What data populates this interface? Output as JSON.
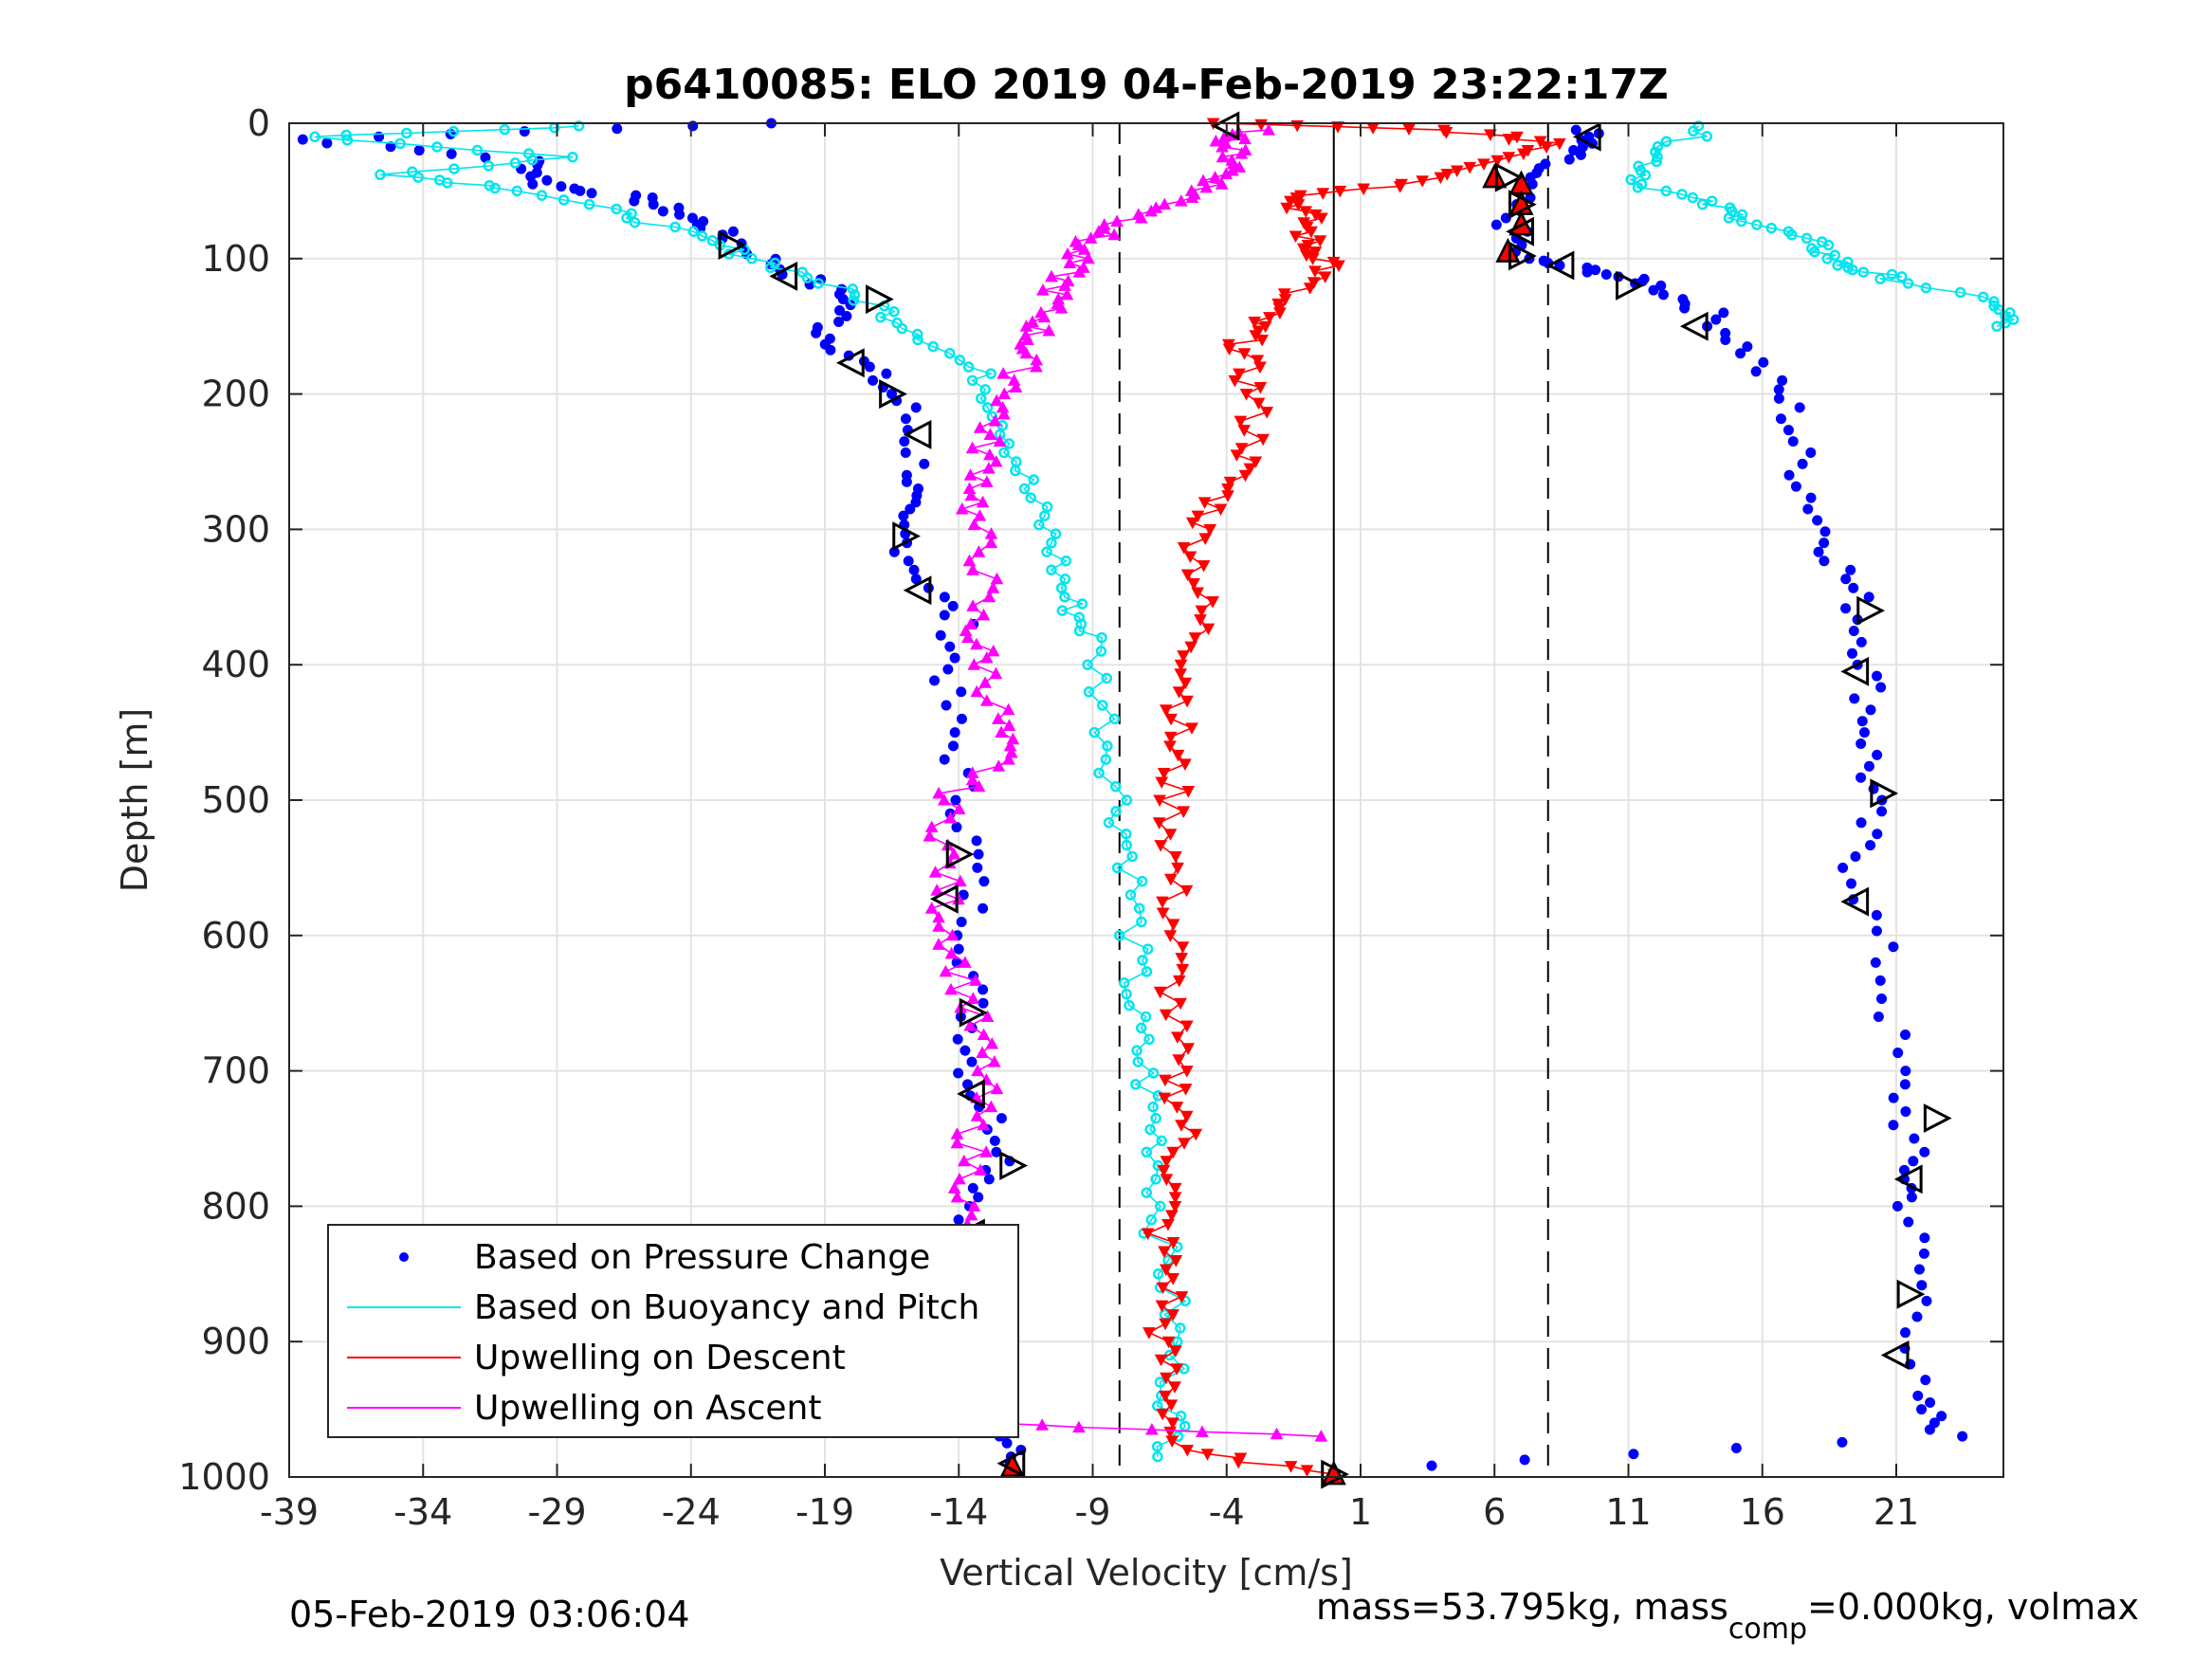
{
  "chart_data": {
    "type": "scatter",
    "title": "p6410085: ELO 2019 04-Feb-2019 23:22:17Z",
    "xlabel": "Vertical Velocity [cm/s]",
    "ylabel": "Depth [m]",
    "xlim": [
      -39,
      25
    ],
    "ylim": [
      0,
      1000
    ],
    "y_reversed": true,
    "grid": true,
    "xticks": [
      -39,
      -34,
      -29,
      -24,
      -19,
      -14,
      -9,
      -4,
      1,
      6,
      11,
      16,
      21
    ],
    "yticks": [
      0,
      100,
      200,
      300,
      400,
      500,
      600,
      700,
      800,
      900,
      1000
    ],
    "xtick_labels": [
      "-39",
      "-34",
      "-29",
      "-24",
      "-19",
      "-14",
      "-9",
      "-4",
      "1",
      "6",
      "11",
      "16",
      "21"
    ],
    "ytick_labels": [
      "0",
      "100",
      "200",
      "300",
      "400",
      "500",
      "600",
      "700",
      "800",
      "900",
      "1000"
    ],
    "vlines": [
      {
        "x": -8,
        "style": "dashed",
        "color": "#000000"
      },
      {
        "x": 8,
        "style": "dashed",
        "color": "#000000"
      },
      {
        "x": 0,
        "style": "solid",
        "color": "#000000"
      }
    ],
    "legend_position": "bottom-left",
    "series": [
      {
        "name": "Based on Pressure Change",
        "color": "#0000ff",
        "marker": "dot",
        "descent": [
          [
            -21,
            0
          ],
          [
            -38.5,
            12
          ],
          [
            -30,
            28
          ],
          [
            -29.5,
            45
          ],
          [
            -26,
            55
          ],
          [
            -24,
            70
          ],
          [
            -22.5,
            85
          ],
          [
            -20.5,
            108
          ],
          [
            -18,
            130
          ],
          [
            -19,
            155
          ],
          [
            -17.5,
            180
          ],
          [
            -16,
            210
          ],
          [
            -15.5,
            260
          ],
          [
            -16.5,
            290
          ],
          [
            -15.5,
            330
          ],
          [
            -14,
            370
          ],
          [
            -14.5,
            420
          ],
          [
            -14,
            480
          ],
          [
            -13.5,
            540
          ],
          [
            -13.5,
            600
          ],
          [
            -13.5,
            660
          ],
          [
            -13.5,
            710
          ],
          [
            -12,
            760
          ],
          [
            -13.5,
            800
          ],
          [
            -13,
            860
          ],
          [
            -12.5,
            920
          ],
          [
            -12.5,
            960
          ],
          [
            -12,
            990
          ]
        ],
        "ascent": [
          [
            9.5,
            5
          ],
          [
            9,
            20
          ],
          [
            7,
            40
          ],
          [
            6.5,
            70
          ],
          [
            7,
            100
          ],
          [
            10,
            110
          ],
          [
            12,
            120
          ],
          [
            14,
            140
          ],
          [
            15.5,
            170
          ],
          [
            17,
            210
          ],
          [
            17.5,
            260
          ],
          [
            18.5,
            310
          ],
          [
            19.5,
            350
          ],
          [
            20,
            400
          ],
          [
            20,
            450
          ],
          [
            20,
            500
          ],
          [
            19.5,
            550
          ],
          [
            20.5,
            620
          ],
          [
            21,
            700
          ],
          [
            21.5,
            760
          ],
          [
            21.5,
            800
          ],
          [
            22,
            870
          ],
          [
            21.5,
            940
          ],
          [
            23,
            970
          ],
          [
            0,
            996
          ]
        ]
      },
      {
        "name": "Based on Buoyancy and Pitch",
        "color": "#00e5ee",
        "marker": "circle",
        "descent": [
          [
            -28,
            2
          ],
          [
            -38,
            10
          ],
          [
            -28.5,
            25
          ],
          [
            -35,
            38
          ],
          [
            -30,
            50
          ],
          [
            -26,
            70
          ],
          [
            -23,
            90
          ],
          [
            -20,
            110
          ],
          [
            -17,
            135
          ],
          [
            -15,
            160
          ],
          [
            -13,
            190
          ],
          [
            -12,
            230
          ],
          [
            -11.5,
            270
          ],
          [
            -10.5,
            310
          ],
          [
            -10,
            350
          ],
          [
            -9,
            380
          ],
          [
            -8.5,
            440
          ],
          [
            -8,
            500
          ],
          [
            -7.5,
            550
          ],
          [
            -7.5,
            610
          ],
          [
            -7.5,
            660
          ],
          [
            -7,
            710
          ],
          [
            -6.5,
            760
          ],
          [
            -6.5,
            820
          ],
          [
            -6,
            880
          ],
          [
            -6,
            940
          ],
          [
            -6,
            985
          ]
        ],
        "ascent": [
          [
            14,
            2
          ],
          [
            12,
            25
          ],
          [
            11.5,
            45
          ],
          [
            14,
            60
          ],
          [
            16,
            75
          ],
          [
            18,
            90
          ],
          [
            19,
            105
          ],
          [
            21,
            115
          ],
          [
            25,
            135
          ],
          [
            25,
            150
          ]
        ]
      },
      {
        "name": "Upwelling on Descent",
        "color": "#ff0000",
        "marker": "triangle-down",
        "descent": [
          [
            -4.5,
            0
          ],
          [
            4,
            5
          ],
          [
            8.5,
            15
          ],
          [
            6,
            30
          ],
          [
            3,
            45
          ],
          [
            -1.5,
            55
          ],
          [
            -1,
            70
          ],
          [
            -1,
            90
          ],
          [
            0,
            105
          ],
          [
            -2,
            130
          ],
          [
            -3,
            150
          ],
          [
            -3.5,
            170
          ],
          [
            -3,
            200
          ],
          [
            -3,
            240
          ],
          [
            -4,
            270
          ],
          [
            -5,
            300
          ],
          [
            -5,
            340
          ],
          [
            -5,
            380
          ],
          [
            -5.5,
            420
          ],
          [
            -6,
            460
          ],
          [
            -6,
            500
          ],
          [
            -6,
            550
          ],
          [
            -6,
            600
          ],
          [
            -6,
            650
          ],
          [
            -6,
            700
          ],
          [
            -5.5,
            740
          ],
          [
            -6,
            780
          ],
          [
            -6.5,
            820
          ],
          [
            -6,
            860
          ],
          [
            -6.5,
            900
          ],
          [
            -6,
            940
          ],
          [
            -6,
            980
          ],
          [
            0,
            998
          ]
        ]
      },
      {
        "name": "Upwelling on Ascent",
        "color": "#ff00ff",
        "marker": "triangle-up",
        "ascent": [
          [
            -3,
            5
          ],
          [
            -4,
            15
          ],
          [
            -3.5,
            30
          ],
          [
            -4.5,
            45
          ],
          [
            -6,
            60
          ],
          [
            -8,
            75
          ],
          [
            -9.5,
            90
          ],
          [
            -10,
            110
          ],
          [
            -10.5,
            130
          ],
          [
            -11,
            150
          ],
          [
            -11.5,
            170
          ],
          [
            -12,
            200
          ],
          [
            -13,
            230
          ],
          [
            -13,
            260
          ],
          [
            -13.5,
            290
          ],
          [
            -13,
            330
          ],
          [
            -13.5,
            370
          ],
          [
            -13,
            400
          ],
          [
            -12.5,
            440
          ],
          [
            -12.5,
            470
          ],
          [
            -14.5,
            500
          ],
          [
            -14.5,
            540
          ],
          [
            -14.5,
            580
          ],
          [
            -14,
            620
          ],
          [
            -13.5,
            660
          ],
          [
            -13,
            700
          ],
          [
            -13.5,
            740
          ],
          [
            -13.5,
            780
          ],
          [
            -14,
            820
          ],
          [
            -13.5,
            860
          ],
          [
            -14,
            900
          ],
          [
            -14,
            930
          ],
          [
            -13.5,
            960
          ],
          [
            0,
            970
          ]
        ]
      }
    ],
    "stall_markers": {
      "color": "#000000",
      "points": [
        [
          -4,
          2
        ],
        [
          -22.5,
          90
        ],
        [
          -20.5,
          113
        ],
        [
          -17,
          130
        ],
        [
          -18,
          177
        ],
        [
          -16.5,
          200
        ],
        [
          -15.5,
          230
        ],
        [
          -16,
          305
        ],
        [
          -15.5,
          345
        ],
        [
          -14,
          540
        ],
        [
          -14.5,
          573
        ],
        [
          -13.5,
          657
        ],
        [
          -13.5,
          717
        ],
        [
          -12,
          770
        ],
        [
          -13.5,
          820
        ],
        [
          -12.5,
          925
        ],
        [
          -12,
          990
        ],
        [
          6.5,
          40
        ],
        [
          9.5,
          10
        ],
        [
          7,
          60
        ],
        [
          7,
          80
        ],
        [
          7,
          98
        ],
        [
          8.5,
          105
        ],
        [
          11,
          120
        ],
        [
          13.5,
          150
        ],
        [
          20,
          360
        ],
        [
          19.5,
          405
        ],
        [
          20.5,
          495
        ],
        [
          19.5,
          575
        ],
        [
          22.5,
          735
        ],
        [
          21.5,
          780
        ],
        [
          21.5,
          865
        ],
        [
          21,
          910
        ],
        [
          0,
          998
        ]
      ]
    },
    "bottom_markers": {
      "color": "#ff0000",
      "points": [
        [
          6,
          40
        ],
        [
          7,
          45
        ],
        [
          7,
          60
        ],
        [
          7,
          75
        ],
        [
          6.5,
          95
        ],
        [
          -12,
          992
        ],
        [
          0,
          998
        ]
      ]
    },
    "footer_left": "05-Feb-2019 03:06:04",
    "footer_right": "mass=53.795kg, mass",
    "footer_right_sub": "comp",
    "footer_right_tail": "=0.000kg, volmax"
  }
}
